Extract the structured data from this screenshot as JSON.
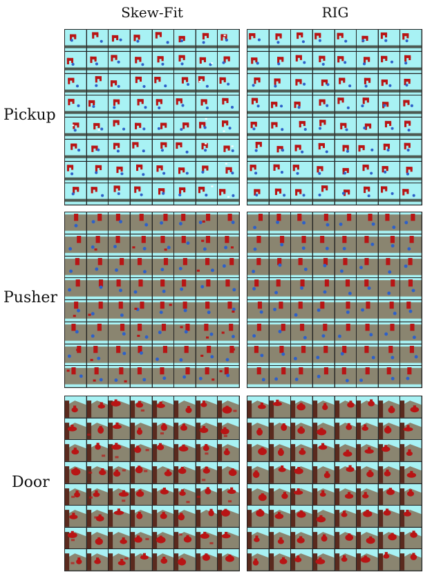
{
  "columns": {
    "left": "Skew-Fit",
    "right": "RIG"
  },
  "rows": [
    {
      "key": "pickup",
      "label": "Pickup"
    },
    {
      "key": "pusher",
      "label": "Pusher"
    },
    {
      "key": "door",
      "label": "Door"
    }
  ],
  "grid": {
    "rows": 8,
    "cols": 8
  },
  "colors": {
    "sky": "#a8f2f4",
    "floor_gray": "#8a8570",
    "dark_band": "#4d5a52",
    "robot_red": "#b81414",
    "puck_blue": "#2d60c9",
    "door_brown": "#5a2a1e",
    "grid_line": "#222222"
  }
}
